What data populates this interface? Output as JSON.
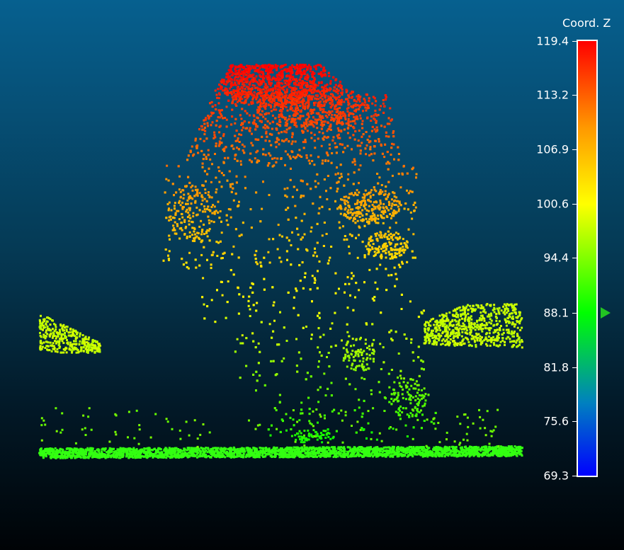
{
  "window": {
    "background_top": "#06608f",
    "background_bottom": "#000306"
  },
  "scalar_field": {
    "title": "Coord. Z",
    "min": 69.3,
    "max": 119.4,
    "ticks": [
      "119.4",
      "113.2",
      "106.9",
      "100.6",
      "94.4",
      "88.1",
      "81.8",
      "75.6",
      "69.3"
    ],
    "tick_values": [
      119.4,
      113.2,
      106.9,
      100.6,
      94.4,
      88.1,
      81.8,
      75.6,
      69.3
    ],
    "slider_value": 88.1,
    "colormap": [
      "#0000ff",
      "#0080c0",
      "#00ff00",
      "#80ff00",
      "#ffff00",
      "#ff9900",
      "#ff0000"
    ]
  },
  "point_cloud": {
    "description": "tree",
    "ground_color": "#33ff11"
  }
}
